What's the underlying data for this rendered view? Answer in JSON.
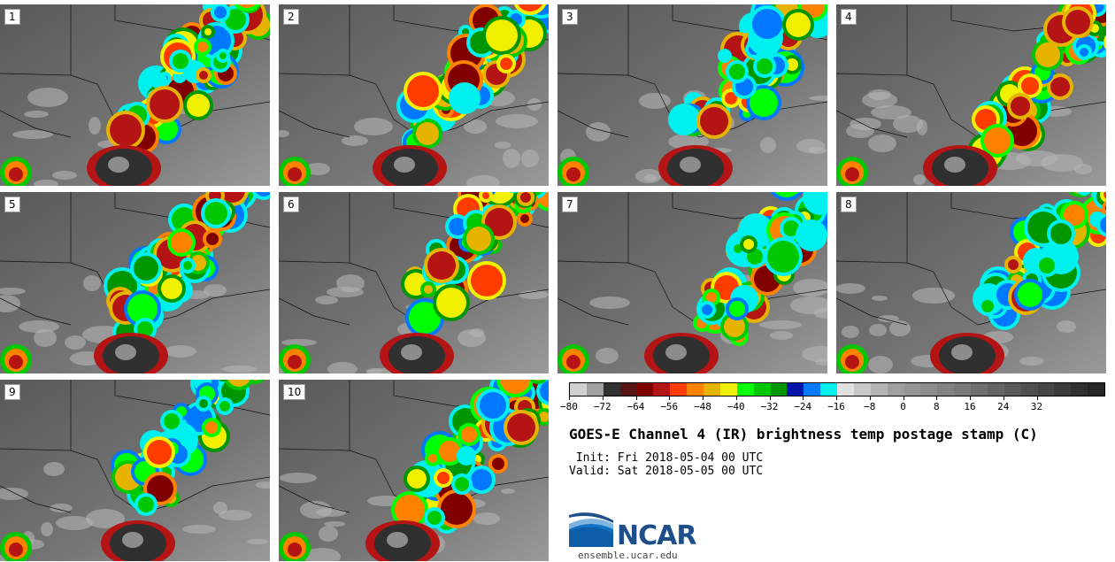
{
  "panels": [
    {
      "label": "1"
    },
    {
      "label": "2"
    },
    {
      "label": "3"
    },
    {
      "label": "4"
    },
    {
      "label": "5"
    },
    {
      "label": "6"
    },
    {
      "label": "7"
    },
    {
      "label": "8"
    },
    {
      "label": "9"
    },
    {
      "label": "10"
    }
  ],
  "colorbar": {
    "colors": [
      "#d0d0d0",
      "#a0a0a0",
      "#303030",
      "#551515",
      "#800000",
      "#b41414",
      "#ff3c00",
      "#ff8200",
      "#e6b400",
      "#f0f000",
      "#00ff00",
      "#00c800",
      "#009600",
      "#0014aa",
      "#0078ff",
      "#00f0f0",
      "#e0e0e0",
      "#c8c8c8",
      "#b4b4b4",
      "#a0a0a0",
      "#969696",
      "#8c8c8c",
      "#828282",
      "#787878",
      "#6e6e6e",
      "#646464",
      "#5a5a5a",
      "#505050",
      "#464646",
      "#3c3c3c",
      "#303030",
      "#262626"
    ],
    "tick_labels": [
      "−80",
      "−72",
      "−64",
      "−56",
      "−48",
      "−40",
      "−32",
      "−24",
      "−16",
      "−8",
      "0",
      "8",
      "16",
      "24",
      "32"
    ]
  },
  "title": "GOES-E Channel 4 (IR) brightness temp postage stamp (C)",
  "init_text": " Init: Fri 2018-05-04 00 UTC",
  "valid_text": "Valid: Sat 2018-05-05 00 UTC",
  "logo": {
    "text": "NCAR",
    "brand_color": "#1f4f8a"
  },
  "site": "ensemble.ucar.edu"
}
